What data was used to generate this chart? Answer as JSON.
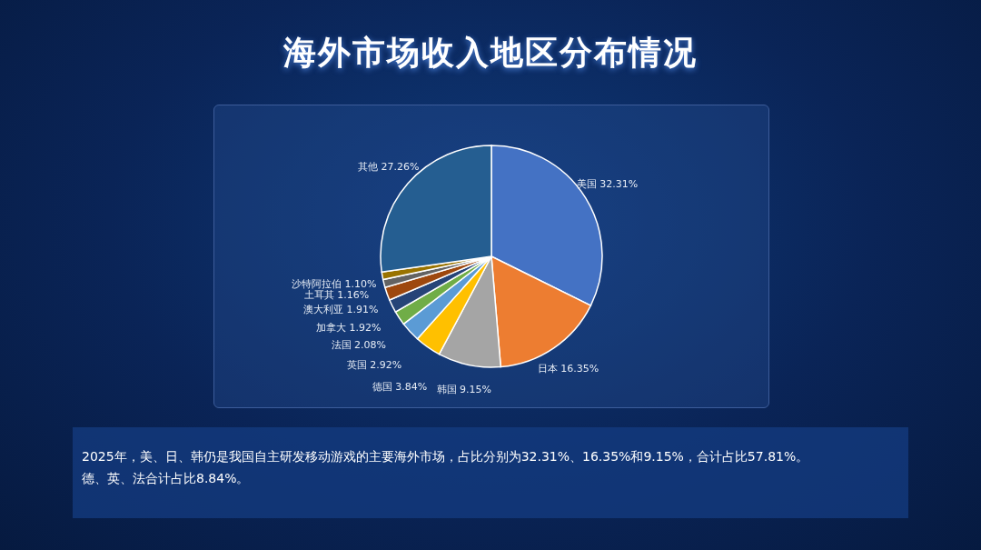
{
  "chart_data": {
    "type": "pie",
    "title": "海外市场收入地区分布情况",
    "categories": [
      "美国",
      "日本",
      "韩国",
      "德国",
      "英国",
      "法国",
      "加拿大",
      "澳大利亚",
      "土耳其",
      "沙特阿拉伯",
      "其他"
    ],
    "values": [
      32.31,
      16.35,
      9.15,
      3.84,
      2.92,
      2.08,
      1.92,
      1.91,
      1.16,
      1.1,
      27.26
    ],
    "value_labels": [
      "32.31%",
      "16.35%",
      "9.15%",
      "3.84%",
      "2.92%",
      "2.08%",
      "1.92%",
      "1.91%",
      "1.16%",
      "1.10%",
      "27.26%"
    ],
    "colors": [
      "#4472c4",
      "#ed7d31",
      "#a5a5a5",
      "#ffc000",
      "#5b9bd5",
      "#70ad47",
      "#264478",
      "#9e480e",
      "#636363",
      "#997300",
      "#255e91"
    ],
    "annotations": [
      "2025年，美、日、韩仍是我国自主研发移动游戏的主要海外市场，占比分别为32.31%、16.35%和9.15%，合计占比57.81%。",
      "德、英、法合计占比8.84%。"
    ]
  }
}
